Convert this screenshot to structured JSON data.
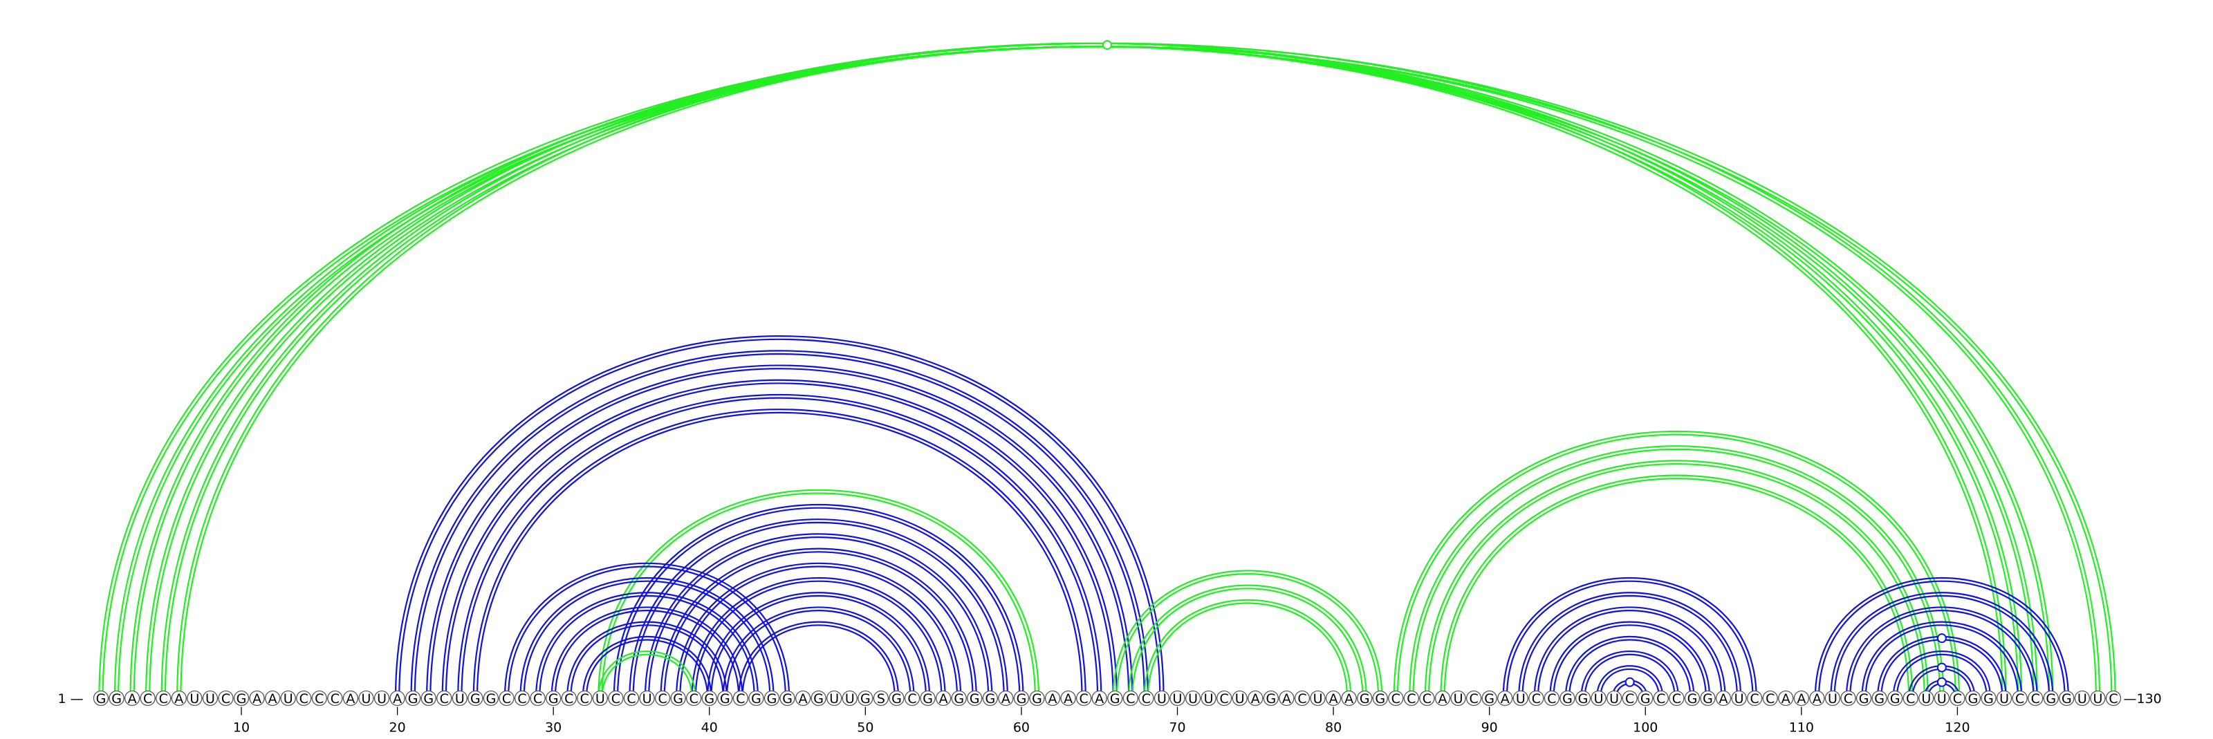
{
  "diagram": {
    "sequence": "GGACCAUUCGAAUCCCAUUAGGCUGGCCCGCCUCCUCGCGGCGGGAGUUGSGCGAGGGAGGAACAGCCUUUUCUAGACUAAGGCCCAUCGAUCCGGUUCGCCGGAUCCAAAUCGGGCUUCGGUCCGGUUC",
    "start_label": "1 —",
    "end_label": "—130",
    "ticks": [
      "10",
      "20",
      "30",
      "40",
      "50",
      "60",
      "70",
      "80",
      "90",
      "100",
      "110",
      "120"
    ],
    "colors": {
      "green": "#22ee22",
      "blue": "#1111dd"
    },
    "arcs": [
      {
        "i": 1,
        "j": 130,
        "color": "green"
      },
      {
        "i": 2,
        "j": 129,
        "color": "green"
      },
      {
        "i": 3,
        "j": 126,
        "color": "green"
      },
      {
        "i": 4,
        "j": 125,
        "color": "green"
      },
      {
        "i": 5,
        "j": 124,
        "color": "green"
      },
      {
        "i": 6,
        "j": 123,
        "color": "green"
      },
      {
        "i": 20,
        "j": 69,
        "color": "blue"
      },
      {
        "i": 21,
        "j": 68,
        "color": "blue"
      },
      {
        "i": 22,
        "j": 67,
        "color": "blue"
      },
      {
        "i": 23,
        "j": 66,
        "color": "blue"
      },
      {
        "i": 24,
        "j": 65,
        "color": "blue"
      },
      {
        "i": 25,
        "j": 64,
        "color": "blue"
      },
      {
        "i": 33,
        "j": 61,
        "color": "green"
      },
      {
        "i": 34,
        "j": 60,
        "color": "blue"
      },
      {
        "i": 35,
        "j": 59,
        "color": "blue"
      },
      {
        "i": 36,
        "j": 58,
        "color": "blue"
      },
      {
        "i": 37,
        "j": 57,
        "color": "blue"
      },
      {
        "i": 38,
        "j": 56,
        "color": "blue"
      },
      {
        "i": 39,
        "j": 55,
        "color": "blue"
      },
      {
        "i": 40,
        "j": 54,
        "color": "blue"
      },
      {
        "i": 41,
        "j": 53,
        "color": "blue"
      },
      {
        "i": 42,
        "j": 52,
        "color": "blue"
      },
      {
        "i": 27,
        "j": 45,
        "color": "blue"
      },
      {
        "i": 28,
        "j": 44,
        "color": "blue"
      },
      {
        "i": 29,
        "j": 43,
        "color": "blue"
      },
      {
        "i": 30,
        "j": 42,
        "color": "blue"
      },
      {
        "i": 31,
        "j": 41,
        "color": "blue"
      },
      {
        "i": 32,
        "j": 40,
        "color": "blue"
      },
      {
        "i": 33,
        "j": 39,
        "color": "green"
      },
      {
        "i": 66,
        "j": 83,
        "color": "green"
      },
      {
        "i": 67,
        "j": 82,
        "color": "green"
      },
      {
        "i": 68,
        "j": 81,
        "color": "green"
      },
      {
        "i": 84,
        "j": 120,
        "color": "green"
      },
      {
        "i": 85,
        "j": 119,
        "color": "green"
      },
      {
        "i": 86,
        "j": 118,
        "color": "green"
      },
      {
        "i": 87,
        "j": 117,
        "color": "green"
      },
      {
        "i": 91,
        "j": 107,
        "color": "blue"
      },
      {
        "i": 92,
        "j": 106,
        "color": "blue"
      },
      {
        "i": 93,
        "j": 105,
        "color": "blue"
      },
      {
        "i": 94,
        "j": 104,
        "color": "blue"
      },
      {
        "i": 95,
        "j": 103,
        "color": "blue"
      },
      {
        "i": 96,
        "j": 102,
        "color": "blue"
      },
      {
        "i": 97,
        "j": 101,
        "color": "blue"
      },
      {
        "i": 98,
        "j": 100,
        "color": "blue"
      },
      {
        "i": 111,
        "j": 127,
        "color": "blue"
      },
      {
        "i": 112,
        "j": 126,
        "color": "blue"
      },
      {
        "i": 113,
        "j": 125,
        "color": "blue"
      },
      {
        "i": 114,
        "j": 124,
        "color": "blue"
      },
      {
        "i": 115,
        "j": 123,
        "color": "blue"
      },
      {
        "i": 116,
        "j": 122,
        "color": "blue"
      },
      {
        "i": 117,
        "j": 121,
        "color": "blue"
      },
      {
        "i": 118,
        "j": 120,
        "color": "blue"
      }
    ],
    "markers": [
      {
        "i": 1,
        "j": 130,
        "color": "green"
      },
      {
        "i": 98,
        "j": 100,
        "color": "blue"
      },
      {
        "i": 117,
        "j": 121,
        "color": "blue"
      },
      {
        "i": 118,
        "j": 120,
        "color": "blue"
      },
      {
        "i": 115,
        "j": 123,
        "color": "blue"
      }
    ]
  }
}
